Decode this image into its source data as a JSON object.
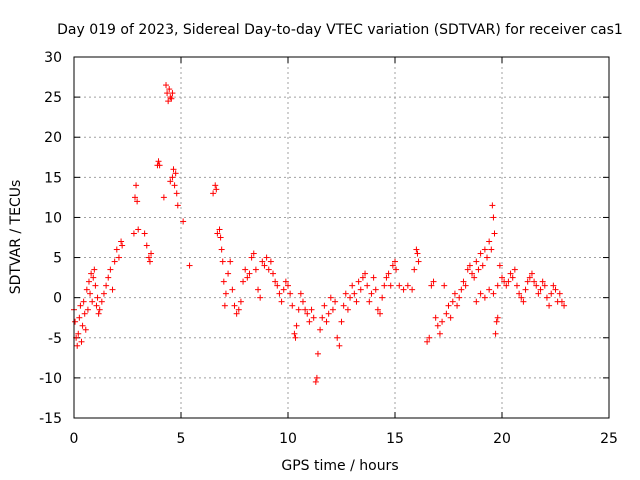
{
  "chart_data": {
    "type": "scatter",
    "title": "Day 019 of 2023, Sidereal Day-to-day VTEC variation (SDTVAR) for receiver cas1",
    "xlabel": "GPS time / hours",
    "ylabel": "SDTVAR / TECUs",
    "xlim": [
      0,
      25
    ],
    "ylim": [
      -15,
      30
    ],
    "xticks": [
      "0",
      "5",
      "10",
      "15",
      "20",
      "25"
    ],
    "yticks": [
      "-15",
      "-10",
      "-5",
      "0",
      "5",
      "10",
      "15",
      "20",
      "25",
      "30"
    ],
    "grid": true,
    "marker": "+",
    "color": "#ff0000",
    "series": [
      {
        "name": "SDTVAR",
        "points": [
          [
            0.0,
            -1.5
          ],
          [
            0.05,
            -3.0
          ],
          [
            0.1,
            -5.0
          ],
          [
            0.15,
            -6.0
          ],
          [
            0.2,
            -4.5
          ],
          [
            0.25,
            -2.5
          ],
          [
            0.3,
            -1.0
          ],
          [
            0.35,
            -5.5
          ],
          [
            0.4,
            -3.5
          ],
          [
            0.45,
            -0.5
          ],
          [
            0.5,
            -2.0
          ],
          [
            0.55,
            -4.0
          ],
          [
            0.6,
            1.0
          ],
          [
            0.65,
            -1.5
          ],
          [
            0.7,
            2.0
          ],
          [
            0.75,
            0.5
          ],
          [
            0.8,
            3.0
          ],
          [
            0.85,
            -0.5
          ],
          [
            0.9,
            2.5
          ],
          [
            0.95,
            3.5
          ],
          [
            1.0,
            1.5
          ],
          [
            1.05,
            -1.0
          ],
          [
            1.1,
            0.0
          ],
          [
            1.15,
            -2.0
          ],
          [
            1.2,
            -1.5
          ],
          [
            1.3,
            -0.5
          ],
          [
            1.4,
            0.5
          ],
          [
            1.5,
            1.5
          ],
          [
            1.6,
            2.5
          ],
          [
            1.7,
            3.5
          ],
          [
            1.8,
            1.0
          ],
          [
            1.9,
            4.5
          ],
          [
            2.0,
            6.0
          ],
          [
            2.1,
            5.0
          ],
          [
            2.2,
            7.0
          ],
          [
            2.25,
            6.5
          ],
          [
            2.8,
            8.0
          ],
          [
            2.85,
            12.5
          ],
          [
            2.9,
            14.0
          ],
          [
            2.95,
            12.0
          ],
          [
            3.0,
            8.5
          ],
          [
            3.3,
            8.0
          ],
          [
            3.4,
            6.5
          ],
          [
            3.5,
            5.0
          ],
          [
            3.55,
            4.5
          ],
          [
            3.6,
            5.5
          ],
          [
            3.9,
            16.5
          ],
          [
            3.95,
            17.0
          ],
          [
            4.0,
            16.5
          ],
          [
            4.2,
            12.5
          ],
          [
            4.3,
            26.5
          ],
          [
            4.35,
            25.5
          ],
          [
            4.4,
            24.5
          ],
          [
            4.45,
            26.0
          ],
          [
            4.5,
            25.0
          ],
          [
            4.55,
            24.8
          ],
          [
            4.6,
            25.5
          ],
          [
            4.5,
            14.5
          ],
          [
            4.6,
            15.0
          ],
          [
            4.65,
            16.0
          ],
          [
            4.7,
            14.0
          ],
          [
            4.75,
            15.5
          ],
          [
            4.8,
            13.0
          ],
          [
            4.85,
            11.5
          ],
          [
            5.1,
            9.5
          ],
          [
            5.4,
            4.0
          ],
          [
            6.5,
            13.0
          ],
          [
            6.6,
            14.0
          ],
          [
            6.65,
            13.5
          ],
          [
            6.7,
            8.0
          ],
          [
            6.8,
            8.5
          ],
          [
            6.85,
            7.5
          ],
          [
            6.9,
            6.0
          ],
          [
            6.95,
            4.5
          ],
          [
            7.0,
            2.0
          ],
          [
            7.05,
            -1.0
          ],
          [
            7.1,
            0.5
          ],
          [
            7.2,
            3.0
          ],
          [
            7.3,
            4.5
          ],
          [
            7.4,
            1.0
          ],
          [
            7.5,
            -1.0
          ],
          [
            7.6,
            -2.0
          ],
          [
            7.7,
            -1.5
          ],
          [
            7.8,
            -0.5
          ],
          [
            7.9,
            2.0
          ],
          [
            8.0,
            3.5
          ],
          [
            8.1,
            2.5
          ],
          [
            8.2,
            3.0
          ],
          [
            8.3,
            5.0
          ],
          [
            8.4,
            5.5
          ],
          [
            8.5,
            3.5
          ],
          [
            8.6,
            1.0
          ],
          [
            8.7,
            0.0
          ],
          [
            8.8,
            4.5
          ],
          [
            8.9,
            4.0
          ],
          [
            9.0,
            5.0
          ],
          [
            9.1,
            3.5
          ],
          [
            9.2,
            4.5
          ],
          [
            9.3,
            3.0
          ],
          [
            9.4,
            2.0
          ],
          [
            9.5,
            1.5
          ],
          [
            9.6,
            0.5
          ],
          [
            9.7,
            -0.5
          ],
          [
            9.8,
            1.0
          ],
          [
            9.9,
            2.0
          ],
          [
            10.0,
            1.5
          ],
          [
            10.1,
            0.5
          ],
          [
            10.2,
            -1.0
          ],
          [
            10.3,
            -4.5
          ],
          [
            10.35,
            -5.0
          ],
          [
            10.4,
            -3.5
          ],
          [
            10.5,
            -1.5
          ],
          [
            10.6,
            0.5
          ],
          [
            10.7,
            -0.5
          ],
          [
            10.8,
            -1.5
          ],
          [
            10.9,
            -2.0
          ],
          [
            11.0,
            -3.0
          ],
          [
            11.1,
            -1.5
          ],
          [
            11.2,
            -2.5
          ],
          [
            11.3,
            -10.5
          ],
          [
            11.35,
            -10.0
          ],
          [
            11.4,
            -7.0
          ],
          [
            11.5,
            -4.0
          ],
          [
            11.6,
            -2.5
          ],
          [
            11.7,
            -1.0
          ],
          [
            11.8,
            -3.0
          ],
          [
            11.9,
            -2.0
          ],
          [
            12.0,
            0.0
          ],
          [
            12.1,
            -1.5
          ],
          [
            12.2,
            -0.5
          ],
          [
            12.3,
            -5.0
          ],
          [
            12.4,
            -6.0
          ],
          [
            12.5,
            -3.0
          ],
          [
            12.6,
            -1.0
          ],
          [
            12.7,
            0.5
          ],
          [
            12.8,
            -1.5
          ],
          [
            12.9,
            0.0
          ],
          [
            13.0,
            1.5
          ],
          [
            13.1,
            0.5
          ],
          [
            13.2,
            -0.5
          ],
          [
            13.3,
            2.0
          ],
          [
            13.4,
            1.0
          ],
          [
            13.5,
            2.5
          ],
          [
            13.6,
            3.0
          ],
          [
            13.7,
            1.5
          ],
          [
            13.8,
            -0.5
          ],
          [
            13.9,
            0.5
          ],
          [
            14.0,
            2.5
          ],
          [
            14.1,
            1.0
          ],
          [
            14.2,
            -1.5
          ],
          [
            14.3,
            -2.0
          ],
          [
            14.4,
            0.0
          ],
          [
            14.5,
            1.5
          ],
          [
            14.6,
            2.5
          ],
          [
            14.7,
            3.0
          ],
          [
            14.8,
            1.5
          ],
          [
            14.9,
            4.0
          ],
          [
            15.0,
            4.5
          ],
          [
            15.05,
            3.5
          ],
          [
            15.2,
            1.5
          ],
          [
            15.4,
            1.0
          ],
          [
            15.6,
            1.5
          ],
          [
            15.8,
            1.0
          ],
          [
            15.9,
            3.5
          ],
          [
            16.0,
            6.0
          ],
          [
            16.05,
            5.5
          ],
          [
            16.1,
            4.5
          ],
          [
            16.5,
            -5.5
          ],
          [
            16.6,
            -5.0
          ],
          [
            16.7,
            1.5
          ],
          [
            16.8,
            2.0
          ],
          [
            16.9,
            -2.5
          ],
          [
            17.0,
            -3.5
          ],
          [
            17.1,
            -4.5
          ],
          [
            17.2,
            -3.0
          ],
          [
            17.3,
            1.5
          ],
          [
            17.4,
            -2.0
          ],
          [
            17.5,
            -1.0
          ],
          [
            17.6,
            -2.5
          ],
          [
            17.7,
            -0.5
          ],
          [
            17.8,
            0.5
          ],
          [
            17.9,
            -1.0
          ],
          [
            18.0,
            0.0
          ],
          [
            18.1,
            1.0
          ],
          [
            18.2,
            2.0
          ],
          [
            18.3,
            1.5
          ],
          [
            18.4,
            3.5
          ],
          [
            18.5,
            4.0
          ],
          [
            18.6,
            3.0
          ],
          [
            18.7,
            2.5
          ],
          [
            18.8,
            4.5
          ],
          [
            18.9,
            3.5
          ],
          [
            19.0,
            5.5
          ],
          [
            19.1,
            4.0
          ],
          [
            19.2,
            6.0
          ],
          [
            19.3,
            5.0
          ],
          [
            19.4,
            7.0
          ],
          [
            19.5,
            6.0
          ],
          [
            19.55,
            11.5
          ],
          [
            19.6,
            10.0
          ],
          [
            19.65,
            8.0
          ],
          [
            19.7,
            -4.5
          ],
          [
            19.75,
            -3.0
          ],
          [
            19.8,
            -2.5
          ],
          [
            19.9,
            4.0
          ],
          [
            18.8,
            -0.5
          ],
          [
            19.0,
            0.5
          ],
          [
            19.2,
            0.0
          ],
          [
            19.4,
            1.0
          ],
          [
            19.6,
            0.5
          ],
          [
            19.8,
            1.5
          ],
          [
            20.0,
            2.5
          ],
          [
            20.1,
            2.0
          ],
          [
            20.2,
            1.5
          ],
          [
            20.3,
            2.0
          ],
          [
            20.4,
            3.0
          ],
          [
            20.5,
            2.5
          ],
          [
            20.6,
            3.5
          ],
          [
            20.7,
            1.5
          ],
          [
            20.8,
            0.5
          ],
          [
            20.9,
            0.0
          ],
          [
            21.0,
            -0.5
          ],
          [
            21.1,
            1.0
          ],
          [
            21.2,
            2.0
          ],
          [
            21.3,
            2.5
          ],
          [
            21.4,
            3.0
          ],
          [
            21.5,
            2.0
          ],
          [
            21.6,
            1.5
          ],
          [
            21.7,
            0.5
          ],
          [
            21.8,
            1.0
          ],
          [
            21.9,
            2.0
          ],
          [
            22.0,
            1.5
          ],
          [
            22.1,
            0.0
          ],
          [
            22.2,
            -1.0
          ],
          [
            22.3,
            0.5
          ],
          [
            22.4,
            1.5
          ],
          [
            22.5,
            1.0
          ],
          [
            22.6,
            -0.5
          ],
          [
            22.7,
            0.5
          ],
          [
            22.8,
            -0.5
          ],
          [
            22.9,
            -1.0
          ]
        ]
      }
    ]
  }
}
